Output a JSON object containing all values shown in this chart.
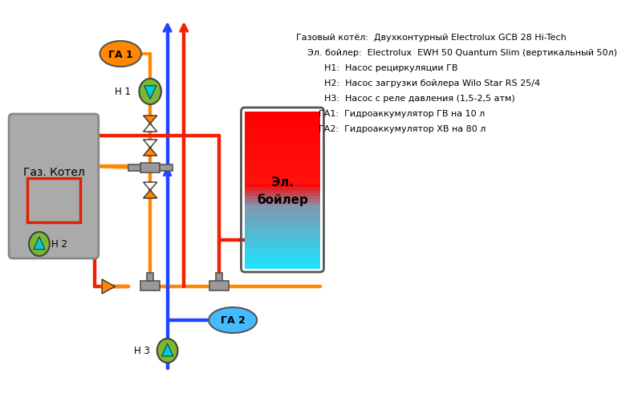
{
  "bg_color": "#ffffff",
  "legend_lines": [
    "Газовый котёл:  Двухконтурный Electrolux GCB 28 Hi-Tech",
    "    Эл. бойлер:  Electrolux  EWH 50 Quantum Slim (вертикальный 50л)",
    "          Н1:  Насос рециркуляции ГВ",
    "          Н2:  Насос загрузки бойлера Wilo Star RS 25/4",
    "          Н3:  Насос с реле давления (1,5-2,5 атм)",
    "        ГА1:  Гидроаккумулятор ГВ на 10 л",
    "        ГА2:  Гидроаккумулятор ХВ на 80 л"
  ],
  "colors": {
    "red_pipe": "#ee2200",
    "blue_pipe": "#2244ff",
    "orange_pipe": "#ff8800",
    "gray": "#888888",
    "dark_gray": "#555555",
    "green_pump": "#77bb33",
    "orange_ga": "#ff8800",
    "cyan_ga": "#44bbff",
    "white": "#ffffff",
    "black": "#000000",
    "kotел_fill": "#aaaaaa",
    "kotел_border": "#888888"
  }
}
